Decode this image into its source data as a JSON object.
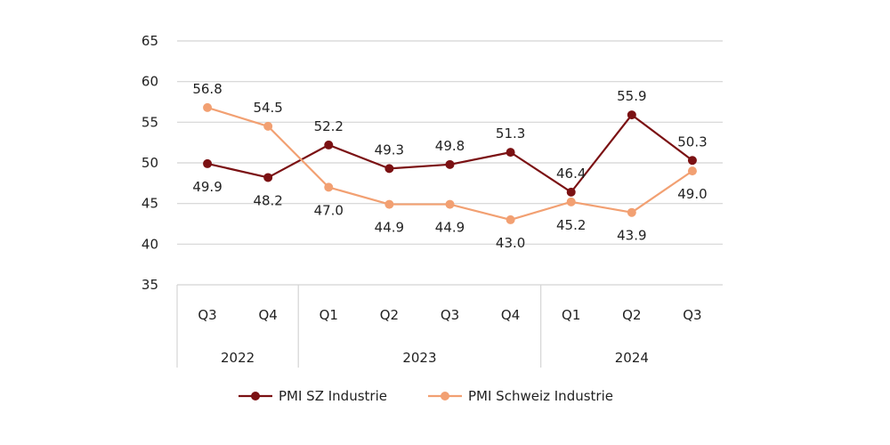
{
  "chart_data": {
    "type": "line",
    "title": "",
    "xlabel": "",
    "ylabel": "",
    "ylim": [
      35,
      65
    ],
    "yticks": [
      35,
      40,
      45,
      50,
      55,
      60,
      65
    ],
    "grid": true,
    "legend_position": "bottom",
    "categories": [
      "Q3",
      "Q4",
      "Q1",
      "Q2",
      "Q3",
      "Q4",
      "Q1",
      "Q2",
      "Q3"
    ],
    "groups": [
      {
        "label": "2022",
        "count": 2
      },
      {
        "label": "2023",
        "count": 4
      },
      {
        "label": "2024",
        "count": 3
      }
    ],
    "series": [
      {
        "name": "PMI SZ Industrie",
        "color": "#7b1113",
        "values": [
          49.9,
          48.2,
          52.2,
          49.3,
          49.8,
          51.3,
          46.4,
          55.9,
          50.3
        ],
        "labels": [
          "49.9",
          "48.2",
          "52.2",
          "49.3",
          "49.8",
          "51.3",
          "46.4",
          "55.9",
          "50.3"
        ]
      },
      {
        "name": "PMI Schweiz Industrie",
        "color": "#f2a072",
        "values": [
          56.8,
          54.5,
          47.0,
          44.9,
          44.9,
          43.0,
          45.2,
          43.9,
          49.0
        ],
        "labels": [
          "56.8",
          "54.5",
          "47.0",
          "44.9",
          "44.9",
          "43.0",
          "45.2",
          "43.9",
          "49.0"
        ]
      }
    ]
  }
}
